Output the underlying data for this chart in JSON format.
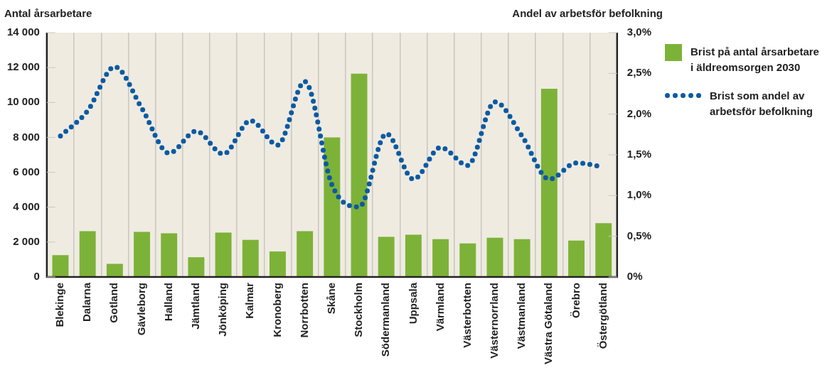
{
  "chart_data": {
    "type": "bar",
    "ylabel": "Antal årsarbetare",
    "y2label": "Andel av arbetsför befolkning",
    "categories": [
      "Blekinge",
      "Dalarna",
      "Gotland",
      "Gävleborg",
      "Halland",
      "Jämtland",
      "Jönköping",
      "Kalmar",
      "Kronoberg",
      "Norrbotten",
      "Skåne",
      "Stockholm",
      "Södermanland",
      "Uppsala",
      "Värmland",
      "Västerbotten",
      "Västernorrland",
      "Västmanland",
      "Västra Götaland",
      "Örebro",
      "Östergötland"
    ],
    "series": [
      {
        "name": "Brist på antal årsarbetare i äldreomsorgen 2030",
        "color": "#7db238",
        "values": [
          1250,
          2620,
          750,
          2580,
          2500,
          1130,
          2540,
          2130,
          1460,
          2620,
          8000,
          11650,
          2300,
          2420,
          2170,
          1920,
          2250,
          2170,
          10780,
          2080,
          3080
        ]
      },
      {
        "name": "Brist som andel av arbetsför befolkning",
        "type": "line",
        "axis": "y2",
        "color": "#0b5aa3",
        "line_style": "dotted",
        "marker": "none",
        "values": [
          1.73,
          2.04,
          2.58,
          2.07,
          1.52,
          1.79,
          1.51,
          1.92,
          1.62,
          2.4,
          1.13,
          0.86,
          1.76,
          1.2,
          1.59,
          1.37,
          2.15,
          1.73,
          1.2,
          1.4,
          1.35
        ]
      }
    ],
    "ylim": [
      0,
      14000
    ],
    "yticks": [
      {
        "value": 0,
        "label": "0"
      },
      {
        "value": 2000,
        "label": "2 000"
      },
      {
        "value": 4000,
        "label": "4 000"
      },
      {
        "value": 6000,
        "label": "6 000"
      },
      {
        "value": 8000,
        "label": "8 000"
      },
      {
        "value": 10000,
        "label": "10 000"
      },
      {
        "value": 12000,
        "label": "12 000"
      },
      {
        "value": 14000,
        "label": "14 000"
      }
    ],
    "y2lim": [
      0,
      3
    ],
    "y2ticks": [
      {
        "value": 0,
        "label": "0%"
      },
      {
        "value": 0.5,
        "label": "0,5%"
      },
      {
        "value": 1,
        "label": "1,0%"
      },
      {
        "value": 1.5,
        "label": "1,5%"
      },
      {
        "value": 2,
        "label": "2,0%"
      },
      {
        "value": 2.5,
        "label": "2,5%"
      },
      {
        "value": 3,
        "label": "3,0%"
      }
    ],
    "grid": "x",
    "legend": "right"
  }
}
